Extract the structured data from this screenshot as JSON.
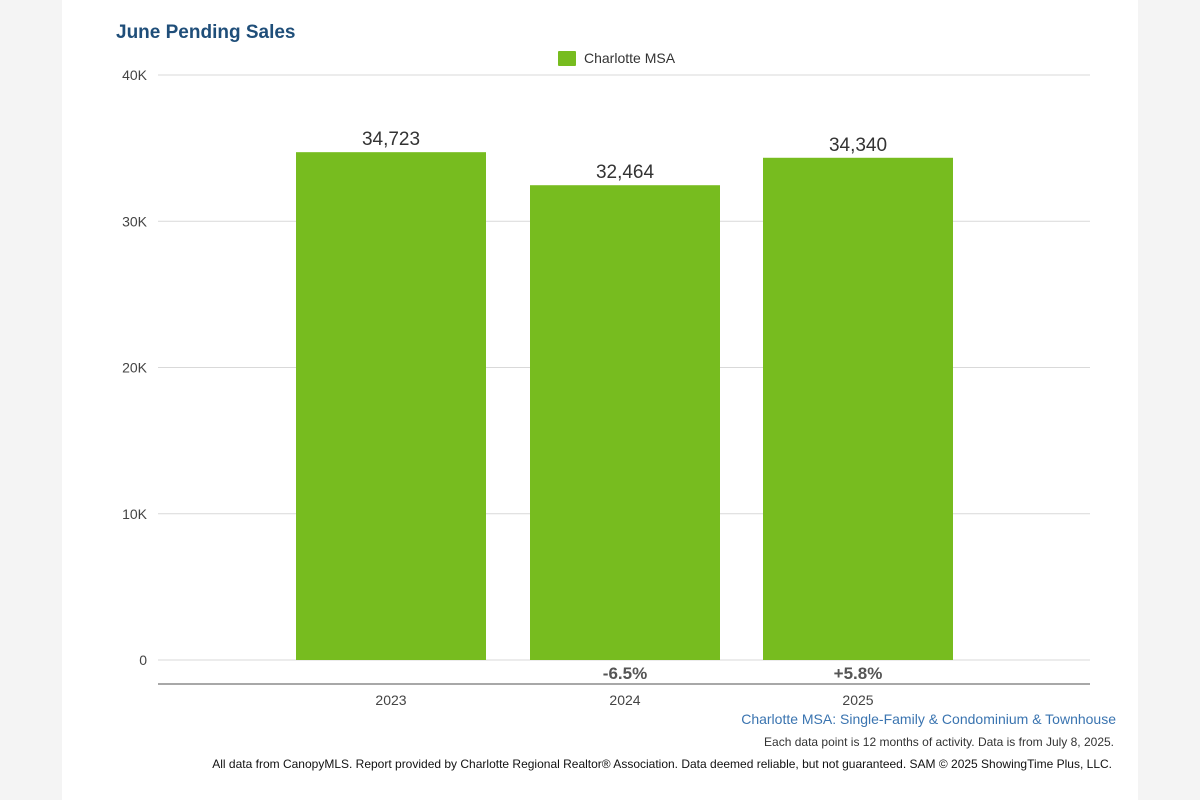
{
  "chart_data": {
    "type": "bar",
    "title": "June Pending Sales",
    "categories": [
      "2023",
      "2024",
      "2025"
    ],
    "series": [
      {
        "name": "Charlotte MSA",
        "values": [
          34723,
          32464,
          34340
        ]
      }
    ],
    "data_labels": [
      "34,723",
      "32,464",
      "34,340"
    ],
    "change_labels": [
      "",
      "-6.5%",
      "+5.8%"
    ],
    "y_ticks": [
      "0",
      "10K",
      "20K",
      "30K",
      "40K"
    ],
    "ylim": [
      0,
      40000
    ],
    "grid": true,
    "legend_position": "top-center",
    "bar_color": "#77bc1f",
    "subtitle": "Charlotte MSA: Single-Family & Condominium & Townhouse",
    "note": "Each data point is 12 months of activity. Data is from July 8, 2025.",
    "footer": "All data from CanopyMLS. Report provided by Charlotte Regional Realtor® Association. Data deemed reliable, but not guaranteed. SAM © 2025 ShowingTime Plus, LLC."
  }
}
